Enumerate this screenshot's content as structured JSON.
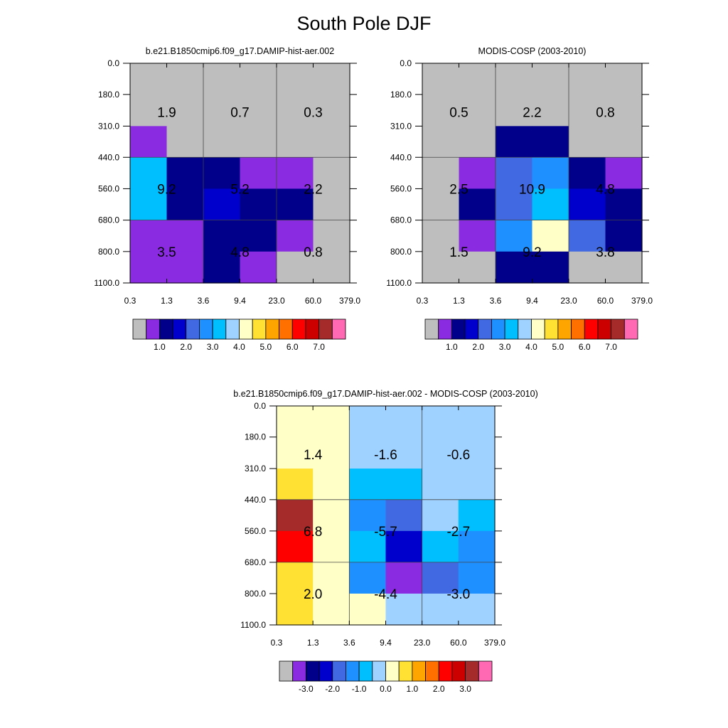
{
  "page_title": "South Pole DJF",
  "chart_data": [
    {
      "type": "heatmap",
      "title": "b.e21.B1850cmip6.f09_g17.DAMIP-hist-aer.002",
      "x_ticks": [
        "0.3",
        "1.3",
        "3.6",
        "9.4",
        "23.0",
        "60.0",
        "379.0"
      ],
      "y_ticks": [
        "0.0",
        "180.0",
        "310.0",
        "440.0",
        "560.0",
        "680.0",
        "800.0",
        "1100.0"
      ],
      "cells": [
        [
          0,
          0,
          0,
          0,
          0,
          0
        ],
        [
          0,
          0,
          0,
          0,
          0,
          0
        ],
        [
          1,
          0,
          0,
          0,
          0,
          0
        ],
        [
          6,
          2,
          2,
          1,
          1,
          0
        ],
        [
          6,
          2,
          3,
          2,
          2,
          0
        ],
        [
          1,
          1,
          2,
          2,
          1,
          0
        ],
        [
          1,
          1,
          2,
          1,
          0,
          0
        ]
      ],
      "box_labels": [
        [
          "1.9",
          "0.7",
          "0.3"
        ],
        [
          "9.2",
          "5.2",
          "2.2"
        ],
        [
          "3.5",
          "4.8",
          "0.8"
        ]
      ],
      "colorbar": {
        "colors": [
          "#bebebe",
          "#8a2be2",
          "#00008b",
          "#0000cd",
          "#4169e1",
          "#1e90ff",
          "#00bfff",
          "#a0d2ff",
          "#ffffc8",
          "#ffe134",
          "#ffa500",
          "#ff7000",
          "#ff0000",
          "#cd0000",
          "#a52a2a",
          "#ff69b4"
        ],
        "labels": [
          "1.0",
          "2.0",
          "3.0",
          "4.0",
          "5.0",
          "6.0",
          "7.0"
        ]
      }
    },
    {
      "type": "heatmap",
      "title": "MODIS-COSP (2003-2010)",
      "x_ticks": [
        "0.3",
        "1.3",
        "3.6",
        "9.4",
        "23.0",
        "60.0",
        "379.0"
      ],
      "y_ticks": [
        "0.0",
        "180.0",
        "310.0",
        "440.0",
        "560.0",
        "680.0",
        "800.0",
        "1100.0"
      ],
      "cells": [
        [
          0,
          0,
          0,
          0,
          0,
          0
        ],
        [
          0,
          0,
          0,
          0,
          0,
          0
        ],
        [
          0,
          0,
          2,
          2,
          0,
          0
        ],
        [
          0,
          1,
          4,
          5,
          2,
          1
        ],
        [
          0,
          2,
          4,
          6,
          3,
          2
        ],
        [
          0,
          1,
          5,
          8,
          4,
          2
        ],
        [
          0,
          0,
          2,
          2,
          0,
          0
        ]
      ],
      "box_labels": [
        [
          "0.5",
          "2.2",
          "0.8"
        ],
        [
          "2.5",
          "10.9",
          "4.8"
        ],
        [
          "1.5",
          "9.2",
          "3.8"
        ]
      ],
      "colorbar": {
        "colors": [
          "#bebebe",
          "#8a2be2",
          "#00008b",
          "#0000cd",
          "#4169e1",
          "#1e90ff",
          "#00bfff",
          "#a0d2ff",
          "#ffffc8",
          "#ffe134",
          "#ffa500",
          "#ff7000",
          "#ff0000",
          "#cd0000",
          "#a52a2a",
          "#ff69b4"
        ],
        "labels": [
          "1.0",
          "2.0",
          "3.0",
          "4.0",
          "5.0",
          "6.0",
          "7.0"
        ]
      }
    },
    {
      "type": "heatmap",
      "title": "b.e21.B1850cmip6.f09_g17.DAMIP-hist-aer.002 - MODIS-COSP (2003-2010)",
      "x_ticks": [
        "0.3",
        "1.3",
        "3.6",
        "9.4",
        "23.0",
        "60.0",
        "379.0"
      ],
      "y_ticks": [
        "0.0",
        "180.0",
        "310.0",
        "440.0",
        "560.0",
        "680.0",
        "800.0",
        "1100.0"
      ],
      "cells": [
        [
          8,
          8,
          7,
          7,
          7,
          7
        ],
        [
          8,
          8,
          7,
          7,
          7,
          7
        ],
        [
          9,
          8,
          6,
          6,
          7,
          7
        ],
        [
          14,
          8,
          5,
          4,
          7,
          6
        ],
        [
          12,
          8,
          6,
          3,
          6,
          5
        ],
        [
          9,
          8,
          5,
          1,
          4,
          5
        ],
        [
          9,
          8,
          8,
          7,
          7,
          7
        ]
      ],
      "box_labels": [
        [
          "1.4",
          "-1.6",
          "-0.6"
        ],
        [
          "6.8",
          "-5.7",
          "-2.7"
        ],
        [
          "2.0",
          "-4.4",
          "-3.0"
        ]
      ],
      "colorbar": {
        "colors": [
          "#bebebe",
          "#8a2be2",
          "#00008b",
          "#0000cd",
          "#4169e1",
          "#1e90ff",
          "#00bfff",
          "#a0d2ff",
          "#ffffc8",
          "#ffe134",
          "#ffa500",
          "#ff7000",
          "#ff0000",
          "#cd0000",
          "#a52a2a",
          "#ff69b4"
        ],
        "labels": [
          "-3.0",
          "-2.0",
          "-1.0",
          "0.0",
          "1.0",
          "2.0",
          "3.0"
        ]
      }
    }
  ]
}
